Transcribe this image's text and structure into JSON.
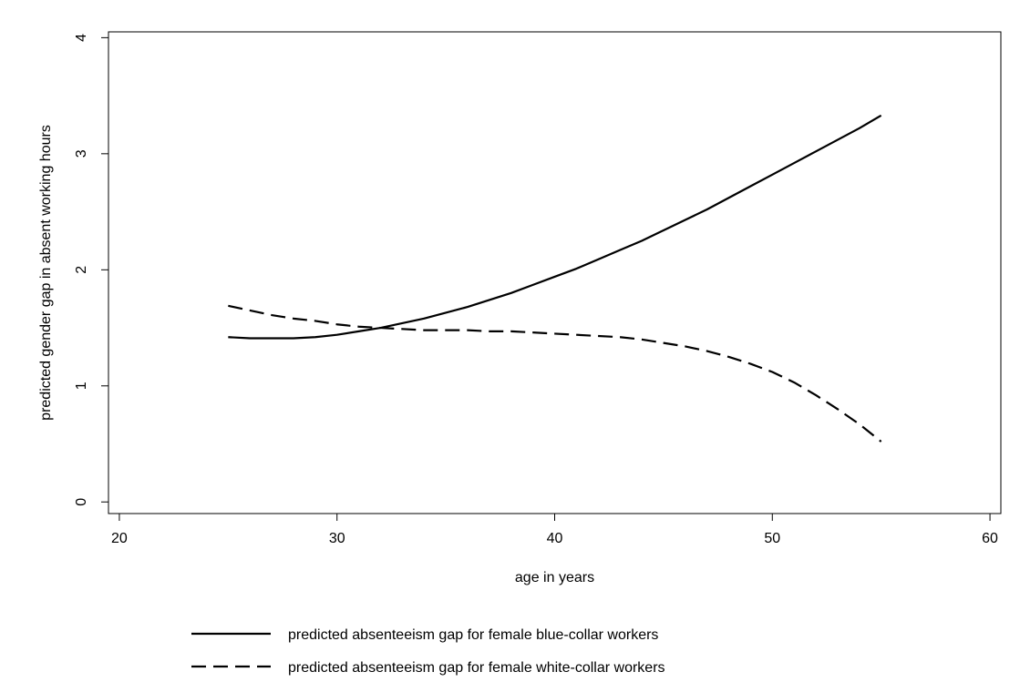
{
  "chart_data": {
    "type": "line",
    "title": "",
    "xlabel": "age in years",
    "ylabel": "predicted gender gap in absent working hours",
    "xlim": [
      19.5,
      60.5
    ],
    "ylim": [
      -0.1,
      4.05
    ],
    "x_ticks": [
      20,
      30,
      40,
      50,
      60
    ],
    "y_ticks": [
      0,
      1,
      2,
      3,
      4
    ],
    "x_tick_labels": [
      "20",
      "30",
      "40",
      "50",
      "60"
    ],
    "y_tick_labels": [
      "0",
      "1",
      "2",
      "3",
      "4"
    ],
    "grid": false,
    "legend_position": "bottom",
    "series": [
      {
        "name": "predicted absenteeism gap for female blue-collar workers",
        "style": "solid",
        "color": "#000000",
        "x": [
          25,
          26,
          27,
          28,
          29,
          30,
          31,
          32,
          33,
          34,
          35,
          36,
          37,
          38,
          39,
          40,
          41,
          42,
          43,
          44,
          45,
          46,
          47,
          48,
          49,
          50,
          51,
          52,
          53,
          54,
          55
        ],
        "y": [
          1.42,
          1.41,
          1.41,
          1.41,
          1.42,
          1.44,
          1.47,
          1.5,
          1.54,
          1.58,
          1.63,
          1.68,
          1.74,
          1.8,
          1.87,
          1.94,
          2.01,
          2.09,
          2.17,
          2.25,
          2.34,
          2.43,
          2.52,
          2.62,
          2.72,
          2.82,
          2.92,
          3.02,
          3.12,
          3.22,
          3.33
        ]
      },
      {
        "name": "predicted absenteeism gap for female white-collar workers",
        "style": "dashed",
        "color": "#000000",
        "x": [
          25,
          26,
          27,
          28,
          29,
          30,
          31,
          32,
          33,
          34,
          35,
          36,
          37,
          38,
          39,
          40,
          41,
          42,
          43,
          44,
          45,
          46,
          47,
          48,
          49,
          50,
          51,
          52,
          53,
          54,
          55
        ],
        "y": [
          1.69,
          1.65,
          1.61,
          1.58,
          1.56,
          1.53,
          1.51,
          1.5,
          1.49,
          1.48,
          1.48,
          1.48,
          1.47,
          1.47,
          1.46,
          1.45,
          1.44,
          1.43,
          1.42,
          1.4,
          1.37,
          1.34,
          1.3,
          1.25,
          1.19,
          1.12,
          1.03,
          0.92,
          0.8,
          0.67,
          0.52
        ]
      }
    ]
  }
}
